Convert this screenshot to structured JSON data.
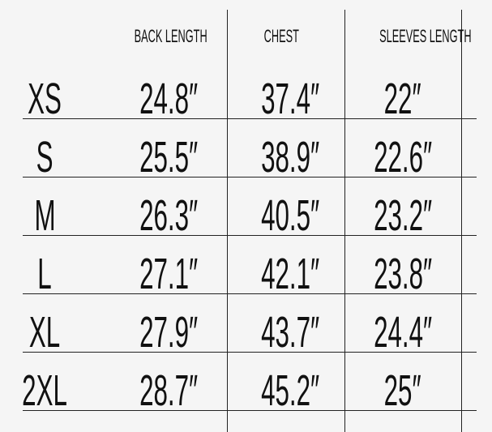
{
  "headers": [
    "",
    "BACK LENGTH",
    "CHEST",
    "SLEEVES LENGTH"
  ],
  "rows": [
    {
      "size": "XS",
      "back_length": "24.8″",
      "chest": "37.4″",
      "sleeves_length": "22″"
    },
    {
      "size": "S",
      "back_length": "25.5″",
      "chest": "38.9″",
      "sleeves_length": "22.6″"
    },
    {
      "size": "M",
      "back_length": "26.3″",
      "chest": "40.5″",
      "sleeves_length": "23.2″"
    },
    {
      "size": "L",
      "back_length": "27.1″",
      "chest": "42.1″",
      "sleeves_length": "23.8″"
    },
    {
      "size": "XL",
      "back_length": "27.9″",
      "chest": "43.7″",
      "sleeves_length": "24.4″"
    },
    {
      "size": "2XL",
      "back_length": "28.7″",
      "chest": "45.2″",
      "sleeves_length": "25″"
    }
  ]
}
